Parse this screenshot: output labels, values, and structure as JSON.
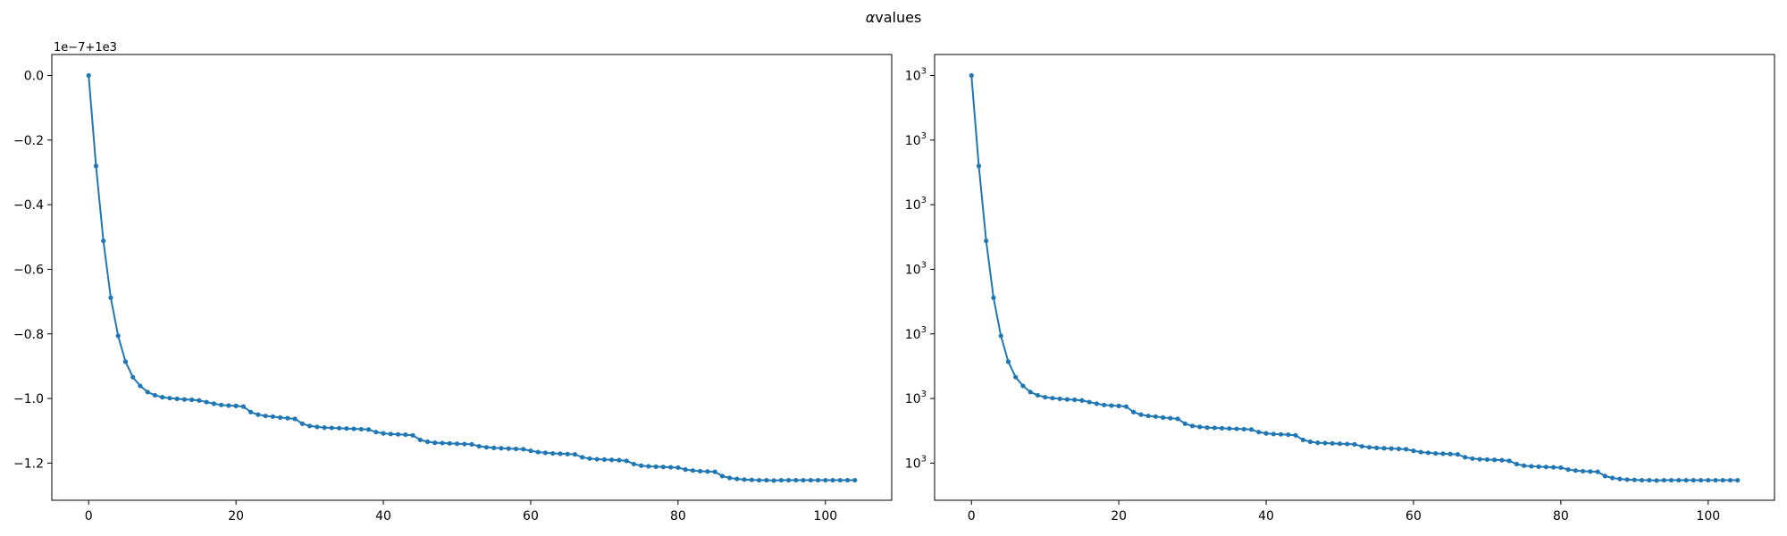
{
  "figure": {
    "title_greek": "α",
    "title_text": "values"
  },
  "colors": {
    "series": "#1f77b4",
    "axes": "#000000",
    "background": "#ffffff"
  },
  "chart_data": [
    {
      "type": "line",
      "scale": "linear",
      "offset_text": "1e−7+1e3",
      "xlim": [
        -5,
        109
      ],
      "ylim": [
        -1.3151,
        0.065
      ],
      "x_ticks": [
        0,
        20,
        40,
        60,
        80,
        100
      ],
      "x_tick_labels": [
        "0",
        "20",
        "40",
        "60",
        "80",
        "100"
      ],
      "y_ticks": [
        0.0,
        -0.2,
        -0.4,
        -0.6,
        -0.8,
        -1.0,
        -1.2
      ],
      "y_tick_labels": [
        "0.0",
        "−0.2",
        "−0.4",
        "−0.6",
        "−0.8",
        "−1.0",
        "−1.2"
      ],
      "grid": false,
      "marker": "dot",
      "x": [
        0,
        1,
        2,
        3,
        4,
        5,
        6,
        7,
        8,
        9,
        10,
        11,
        12,
        13,
        14,
        15,
        16,
        17,
        18,
        19,
        20,
        21,
        22,
        23,
        24,
        25,
        26,
        27,
        28,
        29,
        30,
        31,
        32,
        33,
        34,
        35,
        36,
        37,
        38,
        39,
        40,
        41,
        42,
        43,
        44,
        45,
        46,
        47,
        48,
        49,
        50,
        51,
        52,
        53,
        54,
        55,
        56,
        57,
        58,
        59,
        60,
        61,
        62,
        63,
        64,
        65,
        66,
        67,
        68,
        69,
        70,
        71,
        72,
        73,
        74,
        75,
        76,
        77,
        78,
        79,
        80,
        81,
        82,
        83,
        84,
        85,
        86,
        87,
        88,
        89,
        90,
        91,
        92,
        93,
        94,
        95,
        96,
        97,
        98,
        99,
        100,
        101,
        102,
        103,
        104
      ],
      "y": [
        0.0,
        -0.28,
        -0.512,
        -0.688,
        -0.806,
        -0.886,
        -0.934,
        -0.961,
        -0.98,
        -0.99,
        -0.996,
        -0.999,
        -1.001,
        -1.003,
        -1.004,
        -1.006,
        -1.011,
        -1.016,
        -1.02,
        -1.022,
        -1.023,
        -1.025,
        -1.042,
        -1.05,
        -1.054,
        -1.056,
        -1.059,
        -1.061,
        -1.063,
        -1.078,
        -1.085,
        -1.088,
        -1.09,
        -1.091,
        -1.092,
        -1.093,
        -1.094,
        -1.095,
        -1.096,
        -1.104,
        -1.108,
        -1.11,
        -1.111,
        -1.112,
        -1.114,
        -1.128,
        -1.134,
        -1.137,
        -1.138,
        -1.139,
        -1.14,
        -1.141,
        -1.142,
        -1.148,
        -1.151,
        -1.153,
        -1.154,
        -1.155,
        -1.156,
        -1.157,
        -1.162,
        -1.166,
        -1.168,
        -1.17,
        -1.171,
        -1.172,
        -1.173,
        -1.182,
        -1.186,
        -1.188,
        -1.189,
        -1.19,
        -1.191,
        -1.193,
        -1.203,
        -1.208,
        -1.21,
        -1.211,
        -1.212,
        -1.213,
        -1.214,
        -1.22,
        -1.223,
        -1.225,
        -1.226,
        -1.227,
        -1.24,
        -1.246,
        -1.249,
        -1.251,
        -1.252,
        -1.253,
        -1.253,
        -1.254,
        -1.253,
        -1.253,
        -1.253,
        -1.253,
        -1.253,
        -1.253,
        -1.253,
        -1.253,
        -1.253,
        -1.253,
        -1.253
      ]
    },
    {
      "type": "line",
      "scale": "log",
      "xlim": [
        -5,
        109
      ],
      "ylim": [
        -1.3151,
        0.065
      ],
      "y_unit_note": "same series as left panel on a log axis; ticks shown below",
      "x_ticks": [
        0,
        20,
        40,
        60,
        80,
        100
      ],
      "x_tick_labels": [
        "0",
        "20",
        "40",
        "60",
        "80",
        "100"
      ],
      "y_ticks": [
        0.0,
        -0.2,
        -0.4,
        -0.6,
        -0.8,
        -1.0,
        -1.2
      ],
      "y_tick_labels": [
        "10^3",
        "10^3",
        "10^3",
        "10^3",
        "10^3",
        "10^3",
        "10^3"
      ],
      "y_tick_base": "10",
      "y_tick_exponent": "3",
      "grid": false,
      "marker": "dot",
      "series_ref": 0
    }
  ]
}
